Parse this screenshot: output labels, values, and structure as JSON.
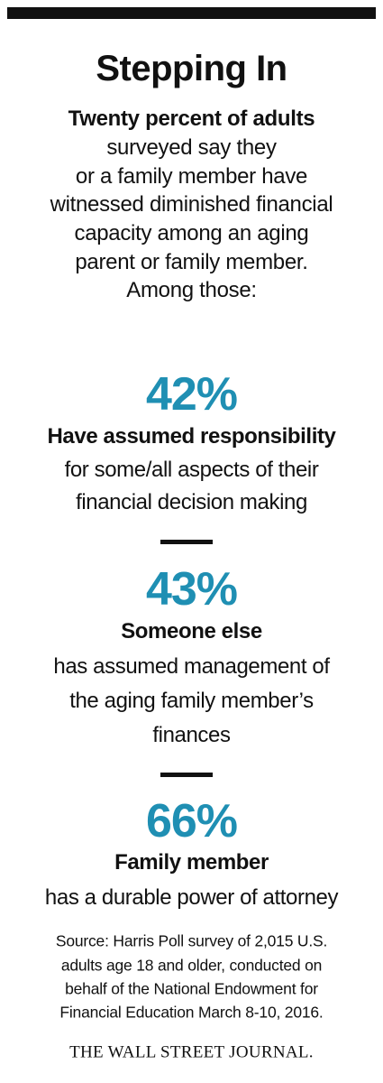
{
  "header": {
    "title": "Stepping In"
  },
  "intro": {
    "lines": [
      "Twenty percent of adults",
      "surveyed say they",
      "or a family member have",
      "witnessed diminished financial",
      "capacity among an aging",
      "parent or family member.",
      "Among those:"
    ]
  },
  "stats": [
    {
      "value": "42%",
      "label": "Have assumed responsibility",
      "description": [
        "for some/all aspects of their",
        "financial decision making"
      ]
    },
    {
      "value": "43%",
      "label": "Someone else",
      "description": [
        "has assumed management of",
        "the aging family member’s",
        "finances"
      ]
    },
    {
      "value": "66%",
      "label": "Family member",
      "description": [
        "has a durable power of attorney"
      ]
    }
  ],
  "source": {
    "lines": [
      "Source: Harris Poll survey of 2,015 U.S.",
      "adults age 18 and older, conducted on",
      "behalf of the National Endowment for",
      "Financial Education March 8-10, 2016."
    ]
  },
  "footer": {
    "publisher": "THE WALL STREET JOURNAL."
  }
}
